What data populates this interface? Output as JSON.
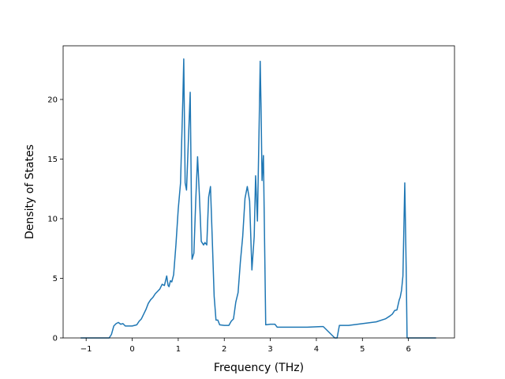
{
  "chart_data": {
    "type": "line",
    "title": "",
    "xlabel": "Frequency (THz)",
    "ylabel": "Density of States",
    "xlim": [
      -1.5,
      7.0
    ],
    "ylim": [
      0,
      24.5
    ],
    "xticks": [
      -1,
      0,
      1,
      2,
      3,
      4,
      5,
      6
    ],
    "xtick_labels": [
      "−1",
      "0",
      "1",
      "2",
      "3",
      "4",
      "5",
      "6"
    ],
    "yticks": [
      0,
      5,
      10,
      15,
      20
    ],
    "ytick_labels": [
      "0",
      "5",
      "10",
      "15",
      "20"
    ],
    "grid": false,
    "legend": "none",
    "color": "#1f77b4",
    "series": [
      {
        "x": [
          -1.12,
          -0.5,
          -0.45,
          -0.4,
          -0.35,
          -0.3,
          -0.25,
          -0.2,
          -0.15,
          -0.1,
          0.0,
          0.1,
          0.15,
          0.2,
          0.25,
          0.3,
          0.35,
          0.4,
          0.45,
          0.5,
          0.55,
          0.6,
          0.65,
          0.7,
          0.75,
          0.78,
          0.8,
          0.83,
          0.86,
          0.9,
          0.95,
          1.0,
          1.05,
          1.1,
          1.12,
          1.15,
          1.18,
          1.22,
          1.26,
          1.3,
          1.34,
          1.38,
          1.42,
          1.46,
          1.5,
          1.55,
          1.58,
          1.62,
          1.66,
          1.7,
          1.74,
          1.78,
          1.82,
          1.86,
          1.9,
          2.0,
          2.1,
          2.15,
          2.2,
          2.25,
          2.3,
          2.35,
          2.4,
          2.45,
          2.5,
          2.55,
          2.6,
          2.65,
          2.68,
          2.72,
          2.76,
          2.78,
          2.8,
          2.82,
          2.85,
          2.9,
          3.0,
          3.1,
          3.15,
          3.5,
          3.8,
          4.1,
          4.15,
          4.4,
          4.45,
          4.5,
          4.7,
          4.8,
          5.0,
          5.2,
          5.3,
          5.5,
          5.6,
          5.65,
          5.7,
          5.75,
          5.8,
          5.82,
          5.85,
          5.88,
          5.92,
          5.95,
          5.97,
          6.1,
          6.6
        ],
        "y": [
          0,
          0,
          0.3,
          1.0,
          1.2,
          1.3,
          1.15,
          1.2,
          1.0,
          1.0,
          1.0,
          1.1,
          1.4,
          1.6,
          2.0,
          2.4,
          2.9,
          3.2,
          3.4,
          3.7,
          3.9,
          4.1,
          4.5,
          4.4,
          5.2,
          4.4,
          4.3,
          4.8,
          4.7,
          5.3,
          7.8,
          10.8,
          13.0,
          20.0,
          23.4,
          13.0,
          12.4,
          16.5,
          20.6,
          6.6,
          7.1,
          11.5,
          15.2,
          11.9,
          8.1,
          7.8,
          8.0,
          7.8,
          11.8,
          12.7,
          8.2,
          3.5,
          1.5,
          1.5,
          1.1,
          1.05,
          1.05,
          1.4,
          1.6,
          3.0,
          3.8,
          6.4,
          8.5,
          11.7,
          12.7,
          11.5,
          5.7,
          8.5,
          13.6,
          9.8,
          18.5,
          23.2,
          19.0,
          13.2,
          15.3,
          1.1,
          1.15,
          1.15,
          0.9,
          0.9,
          0.9,
          0.95,
          0.95,
          0.0,
          0.0,
          1.05,
          1.05,
          1.1,
          1.2,
          1.3,
          1.35,
          1.6,
          1.85,
          2.0,
          2.3,
          2.35,
          3.2,
          3.4,
          4.0,
          5.2,
          13.0,
          6.0,
          0.0,
          0.0,
          0.0
        ]
      }
    ]
  }
}
